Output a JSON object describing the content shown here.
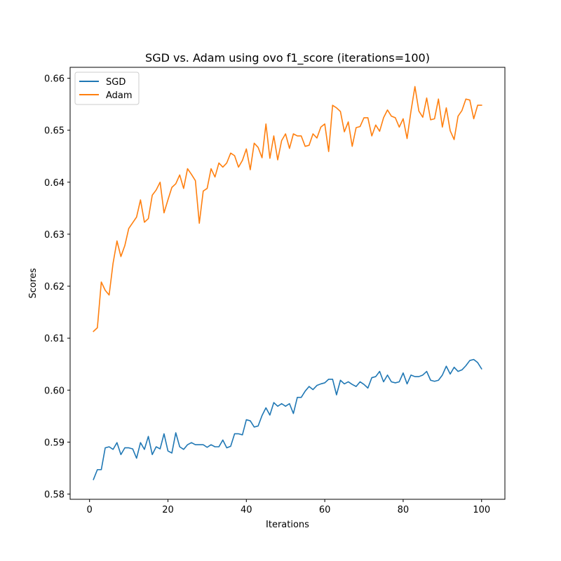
{
  "chart_data": {
    "type": "line",
    "title": "SGD vs. Adam using ovo f1_score (iterations=100)",
    "xlabel": "Iterations",
    "ylabel": "Scores",
    "xlim": [
      -4.95,
      105.95
    ],
    "ylim": [
      0.579,
      0.6621
    ],
    "xticks": [
      0,
      20,
      40,
      60,
      80,
      100
    ],
    "yticks": [
      0.58,
      0.59,
      0.6,
      0.61,
      0.62,
      0.63,
      0.64,
      0.65,
      0.66
    ],
    "xtick_labels": [
      "0",
      "20",
      "40",
      "60",
      "80",
      "100"
    ],
    "ytick_labels": [
      "0.58",
      "0.59",
      "0.60",
      "0.61",
      "0.62",
      "0.63",
      "0.64",
      "0.65",
      "0.66"
    ],
    "grid": false,
    "legend_position": "top-left",
    "x_start": 1,
    "series": [
      {
        "name": "SGD",
        "color": "#1f77b4",
        "values": [
          0.5828,
          0.5847,
          0.5847,
          0.5889,
          0.5891,
          0.5886,
          0.5899,
          0.5876,
          0.5889,
          0.5889,
          0.5887,
          0.5869,
          0.5899,
          0.5886,
          0.5911,
          0.5876,
          0.5891,
          0.5887,
          0.5916,
          0.5883,
          0.5879,
          0.5918,
          0.5891,
          0.5886,
          0.5895,
          0.5899,
          0.5895,
          0.5895,
          0.5895,
          0.589,
          0.5895,
          0.5891,
          0.5891,
          0.5904,
          0.5889,
          0.5892,
          0.5916,
          0.5916,
          0.5914,
          0.5943,
          0.5941,
          0.5929,
          0.5931,
          0.5951,
          0.5966,
          0.5952,
          0.5976,
          0.5969,
          0.5974,
          0.5969,
          0.5974,
          0.5955,
          0.5986,
          0.5986,
          0.5998,
          0.6007,
          0.6001,
          0.6009,
          0.6012,
          0.6014,
          0.6021,
          0.6021,
          0.5991,
          0.6019,
          0.6012,
          0.6016,
          0.6011,
          0.6007,
          0.6016,
          0.6011,
          0.6004,
          0.6024,
          0.6026,
          0.6036,
          0.6016,
          0.6029,
          0.6016,
          0.6014,
          0.6016,
          0.6033,
          0.6012,
          0.6029,
          0.6026,
          0.6026,
          0.6029,
          0.6036,
          0.6019,
          0.6017,
          0.6019,
          0.6029,
          0.6046,
          0.6031,
          0.6044,
          0.6036,
          0.6039,
          0.6047,
          0.6057,
          0.6059,
          0.6053,
          0.6041
        ]
      },
      {
        "name": "Adam",
        "color": "#ff7f0e",
        "values": [
          0.6113,
          0.612,
          0.6208,
          0.6192,
          0.6183,
          0.6244,
          0.6287,
          0.6257,
          0.6278,
          0.6311,
          0.6322,
          0.6333,
          0.6366,
          0.6323,
          0.633,
          0.6375,
          0.6385,
          0.64,
          0.6341,
          0.6366,
          0.639,
          0.6397,
          0.6414,
          0.6388,
          0.6426,
          0.6415,
          0.6403,
          0.6321,
          0.6383,
          0.6388,
          0.6426,
          0.641,
          0.6437,
          0.6429,
          0.6437,
          0.6456,
          0.6451,
          0.6429,
          0.6442,
          0.6464,
          0.6424,
          0.6475,
          0.6467,
          0.6447,
          0.6512,
          0.6446,
          0.6489,
          0.6443,
          0.648,
          0.6493,
          0.6465,
          0.6493,
          0.6489,
          0.6489,
          0.6469,
          0.6471,
          0.6493,
          0.6485,
          0.6506,
          0.6512,
          0.6459,
          0.6548,
          0.6543,
          0.6536,
          0.6497,
          0.6516,
          0.6469,
          0.6505,
          0.6507,
          0.6524,
          0.6524,
          0.6489,
          0.651,
          0.6498,
          0.6524,
          0.6539,
          0.6527,
          0.6524,
          0.6506,
          0.6522,
          0.6484,
          0.6537,
          0.6584,
          0.6537,
          0.6525,
          0.6562,
          0.652,
          0.6522,
          0.656,
          0.6506,
          0.6543,
          0.6499,
          0.6482,
          0.6527,
          0.6538,
          0.656,
          0.6558,
          0.6522,
          0.6548,
          0.6548
        ]
      }
    ]
  }
}
